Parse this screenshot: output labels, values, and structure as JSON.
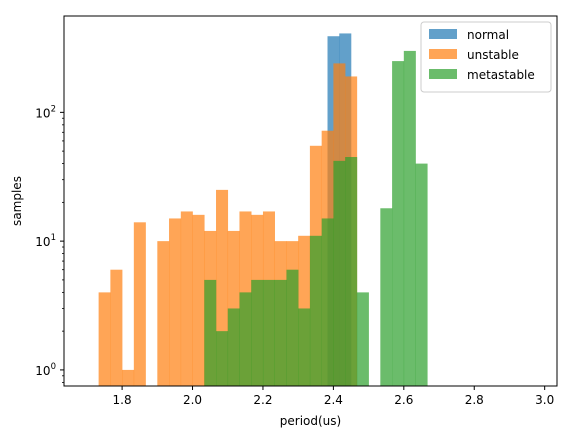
{
  "chart_data": {
    "type": "bar",
    "title": "",
    "xlabel": "period(us)",
    "ylabel": "samples",
    "y_scale": "log",
    "xlim": [
      1.635,
      3.035
    ],
    "ylim": [
      0.75,
      560
    ],
    "x_ticks": [
      1.8,
      2.0,
      2.2,
      2.4,
      2.6,
      2.8,
      3.0
    ],
    "x_tick_labels": [
      "1.8",
      "2.0",
      "2.2",
      "2.4",
      "2.6",
      "2.8",
      "3.0"
    ],
    "y_ticks": [
      1,
      10,
      100
    ],
    "y_tick_base": "10",
    "y_tick_exponents": [
      "0",
      "1",
      "2"
    ],
    "legend_position": "top-right",
    "bin_width": 0.0333,
    "series": [
      {
        "name": "normal",
        "color": "#1f77b4",
        "alpha": 0.7,
        "bins": [
          [
            2.3833,
            390
          ],
          [
            2.4167,
            410
          ]
        ]
      },
      {
        "name": "unstable",
        "color": "#ff7f0e",
        "alpha": 0.7,
        "bins": [
          [
            1.7333,
            4
          ],
          [
            1.7667,
            6
          ],
          [
            1.8,
            1
          ],
          [
            1.8333,
            14
          ],
          [
            1.9,
            10
          ],
          [
            1.9333,
            15
          ],
          [
            1.9667,
            17
          ],
          [
            2.0,
            16
          ],
          [
            2.0333,
            12
          ],
          [
            2.0667,
            25
          ],
          [
            2.1,
            12
          ],
          [
            2.1333,
            17
          ],
          [
            2.1667,
            16
          ],
          [
            2.2,
            17
          ],
          [
            2.2333,
            10
          ],
          [
            2.2667,
            10
          ],
          [
            2.3,
            11
          ],
          [
            2.3333,
            55
          ],
          [
            2.3667,
            72
          ],
          [
            2.4,
            240
          ],
          [
            2.4333,
            190
          ]
        ]
      },
      {
        "name": "metastable",
        "color": "#2ca02c",
        "alpha": 0.7,
        "bins": [
          [
            2.0333,
            5
          ],
          [
            2.0667,
            2
          ],
          [
            2.1,
            3
          ],
          [
            2.1333,
            4
          ],
          [
            2.1667,
            5
          ],
          [
            2.2,
            5
          ],
          [
            2.2333,
            5
          ],
          [
            2.2667,
            6
          ],
          [
            2.3,
            3
          ],
          [
            2.3333,
            11
          ],
          [
            2.3667,
            15
          ],
          [
            2.4,
            42
          ],
          [
            2.4333,
            45
          ],
          [
            2.4667,
            4
          ],
          [
            2.5333,
            18
          ],
          [
            2.5667,
            250
          ],
          [
            2.6,
            300
          ],
          [
            2.6333,
            40
          ]
        ]
      }
    ]
  }
}
